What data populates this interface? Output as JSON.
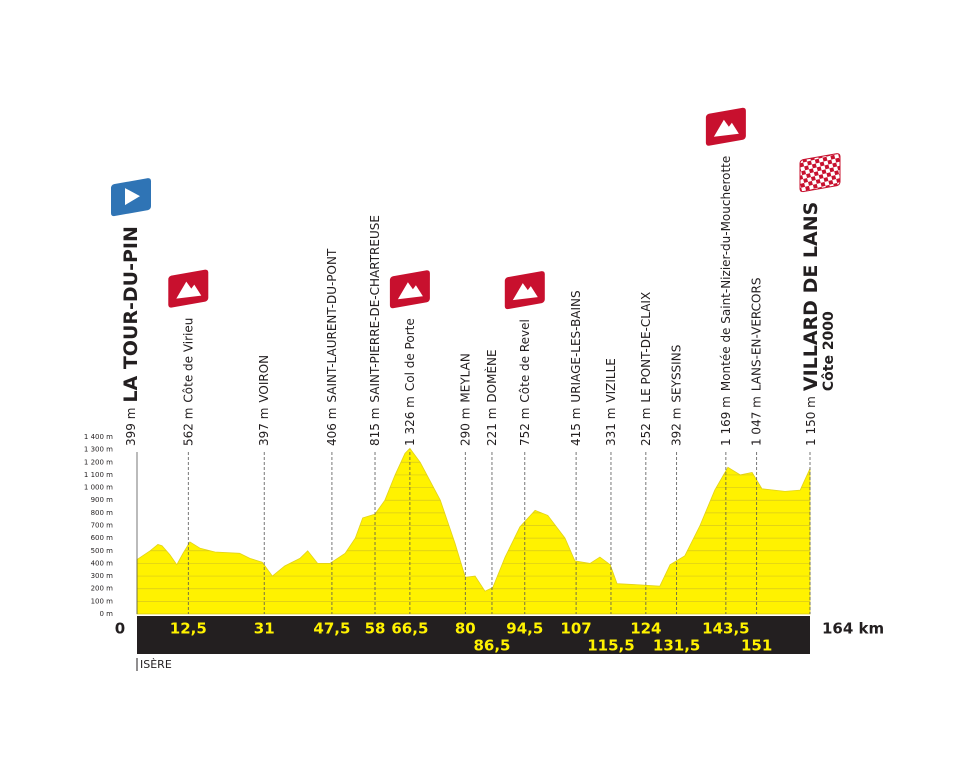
{
  "chart_data": {
    "type": "profile",
    "x": [
      0,
      3.2,
      5.1,
      6.1,
      8,
      9.7,
      11.2,
      12.9,
      15.4,
      19,
      25,
      27.5,
      30.5,
      33,
      36,
      39.7,
      41.6,
      44,
      47,
      50.7,
      53.2,
      55,
      58,
      60.4,
      62.9,
      65.3,
      66.5,
      69,
      73.9,
      77.5,
      80,
      82.4,
      84.8,
      86.7,
      89.7,
      93.3,
      97,
      100.1,
      104.3,
      106.7,
      110.4,
      112.8,
      115.3,
      117,
      122.6,
      127.4,
      129.9,
      133.5,
      137.2,
      140.8,
      144,
      147,
      149.9,
      152.3,
      157.9,
      161.6,
      164
    ],
    "values": [
      430,
      500,
      550,
      540,
      470,
      390,
      480,
      570,
      520,
      490,
      480,
      440,
      410,
      300,
      380,
      440,
      500,
      400,
      400,
      480,
      600,
      760,
      790,
      900,
      1100,
      1270,
      1310,
      1200,
      900,
      560,
      290,
      300,
      180,
      210,
      450,
      690,
      820,
      780,
      600,
      420,
      400,
      450,
      390,
      240,
      230,
      220,
      390,
      460,
      700,
      980,
      1160,
      1100,
      1120,
      990,
      970,
      980,
      1150
    ],
    "color": "#fff200",
    "xlim": [
      0,
      164
    ],
    "ylim": [
      0,
      1400
    ],
    "yticks": [
      {
        "value": 0,
        "label": "0 m"
      },
      {
        "value": 100,
        "label": "100 m"
      },
      {
        "value": 200,
        "label": "200 m"
      },
      {
        "value": 300,
        "label": "300 m"
      },
      {
        "value": 400,
        "label": "400 m"
      },
      {
        "value": 500,
        "label": "500 m"
      },
      {
        "value": 600,
        "label": "600 m"
      },
      {
        "value": 700,
        "label": "700 m"
      },
      {
        "value": 800,
        "label": "800 m"
      },
      {
        "value": 900,
        "label": "900 m"
      },
      {
        "value": 1000,
        "label": "1 000 m"
      },
      {
        "value": 1100,
        "label": "1 100 m"
      },
      {
        "value": 1200,
        "label": "1 200 m"
      },
      {
        "value": 1300,
        "label": "1 300 m"
      },
      {
        "value": 1400,
        "label": "1 400 m"
      }
    ],
    "grid": true,
    "waypoints": [
      {
        "km": {
          "value": 0,
          "label": "0"
        },
        "altitude": {
          "value": 399,
          "label": "399 m"
        },
        "name": "LA TOUR-DU-PIN",
        "icon": "start"
      },
      {
        "km": {
          "value": 12.5,
          "label": "12,5"
        },
        "altitude": {
          "value": 562,
          "label": "562 m"
        },
        "name": "Côte de Virieu",
        "icon": "climb"
      },
      {
        "km": {
          "value": 31,
          "label": "31"
        },
        "altitude": {
          "value": 397,
          "label": "397 m"
        },
        "name": "VOIRON"
      },
      {
        "km": {
          "value": 47.5,
          "label": "47,5"
        },
        "altitude": {
          "value": 406,
          "label": "406 m"
        },
        "name": "SAINT-LAURENT-DU-PONT"
      },
      {
        "km": {
          "value": 58,
          "label": "58"
        },
        "altitude": {
          "value": 815,
          "label": "815 m"
        },
        "name": "SAINT-PIERRE-DE-CHARTREUSE"
      },
      {
        "km": {
          "value": 66.5,
          "label": "66,5"
        },
        "altitude": {
          "value": 1326,
          "label": "1 326 m"
        },
        "name": "Col de Porte",
        "icon": "climb"
      },
      {
        "km": {
          "value": 80,
          "label": "80"
        },
        "altitude": {
          "value": 290,
          "label": "290 m"
        },
        "name": "MEYLAN"
      },
      {
        "km": {
          "value": 86.5,
          "label": "86,5"
        },
        "altitude": {
          "value": 221,
          "label": "221 m"
        },
        "name": "DOMÈNE"
      },
      {
        "km": {
          "value": 94.5,
          "label": "94,5"
        },
        "altitude": {
          "value": 752,
          "label": "752 m"
        },
        "name": "Côte de Revel",
        "icon": "climb"
      },
      {
        "km": {
          "value": 107,
          "label": "107"
        },
        "altitude": {
          "value": 415,
          "label": "415 m"
        },
        "name": "URIAGE-LES-BAINS"
      },
      {
        "km": {
          "value": 115.5,
          "label": "115,5"
        },
        "altitude": {
          "value": 331,
          "label": "331 m"
        },
        "name": "VIZILLE"
      },
      {
        "km": {
          "value": 124,
          "label": "124"
        },
        "altitude": {
          "value": 252,
          "label": "252 m"
        },
        "name": "LE PONT-DE-CLAIX"
      },
      {
        "km": {
          "value": 131.5,
          "label": "131,5"
        },
        "altitude": {
          "value": 392,
          "label": "392 m"
        },
        "name": "SEYSSINS"
      },
      {
        "km": {
          "value": 143.5,
          "label": "143,5"
        },
        "altitude": {
          "value": 1169,
          "label": "1 169 m"
        },
        "name": "Montée de Saint-Nizier-du-Moucherotte",
        "icon": "climb"
      },
      {
        "km": {
          "value": 151,
          "label": "151"
        },
        "altitude": {
          "value": 1047,
          "label": "1 047 m"
        },
        "name": "LANS-EN-VERCORS"
      },
      {
        "km": {
          "value": 164,
          "label": "164 km"
        },
        "altitude": {
          "value": 1150,
          "label": "1 150 m"
        },
        "name": "VILLARD DE LANS",
        "subtitle": "Côte 2000",
        "icon": "finish"
      }
    ],
    "region": "ISÈRE"
  }
}
